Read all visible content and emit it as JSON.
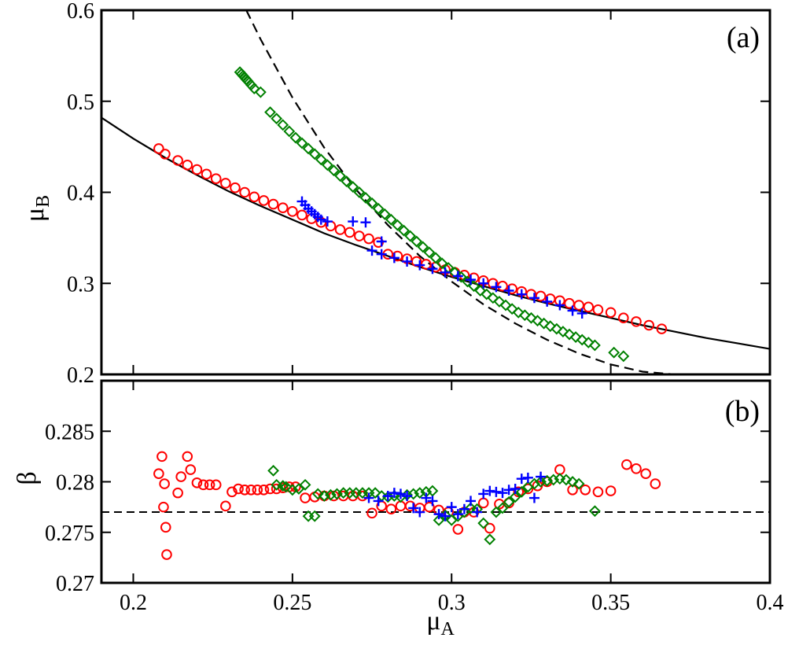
{
  "chart_data": [
    {
      "type": "scatter",
      "panel_label": "(a)",
      "xlabel": "μ",
      "xlabel_sub": "A",
      "ylabel": "μ",
      "ylabel_sub": "B",
      "xlim": [
        0.19,
        0.4
      ],
      "ylim": [
        0.2,
        0.6
      ],
      "x_ticks": [
        0.2,
        0.25,
        0.3,
        0.35,
        0.4
      ],
      "x_tick_labels": [
        "0.2",
        "0.25",
        "0.3",
        "0.35",
        "0.4"
      ],
      "y_ticks": [
        0.2,
        0.3,
        0.4,
        0.5,
        0.6
      ],
      "y_tick_labels": [
        "0.2",
        "0.3",
        "0.4",
        "0.5",
        "0.6"
      ],
      "lines": [
        {
          "name": "solid fit",
          "style": "solid",
          "color": "#000000",
          "x": [
            0.19,
            0.2,
            0.21,
            0.22,
            0.23,
            0.24,
            0.25,
            0.26,
            0.27,
            0.28,
            0.29,
            0.3,
            0.31,
            0.32,
            0.33,
            0.34,
            0.35,
            0.36,
            0.37,
            0.38,
            0.39,
            0.4
          ],
          "y": [
            0.482,
            0.459,
            0.438,
            0.419,
            0.401,
            0.385,
            0.37,
            0.355,
            0.342,
            0.33,
            0.318,
            0.307,
            0.297,
            0.287,
            0.278,
            0.27,
            0.262,
            0.254,
            0.247,
            0.24,
            0.234,
            0.228
          ]
        },
        {
          "name": "dashed fit",
          "style": "dashed",
          "color": "#000000",
          "x": [
            0.2355,
            0.24,
            0.25,
            0.26,
            0.27,
            0.28,
            0.29,
            0.3,
            0.31,
            0.32,
            0.33,
            0.34,
            0.35,
            0.36,
            0.37,
            0.3738
          ],
          "y": [
            0.6,
            0.568,
            0.504,
            0.449,
            0.403,
            0.364,
            0.33,
            0.302,
            0.277,
            0.256,
            0.238,
            0.223,
            0.211,
            0.203,
            0.2,
            0.2
          ]
        }
      ],
      "series": [
        {
          "name": "circles",
          "marker": "circle",
          "color": "#ff0000",
          "x": [
            0.208,
            0.21,
            0.214,
            0.217,
            0.22,
            0.223,
            0.226,
            0.229,
            0.232,
            0.235,
            0.238,
            0.241,
            0.244,
            0.247,
            0.25,
            0.253,
            0.256,
            0.259,
            0.262,
            0.265,
            0.268,
            0.271,
            0.274,
            0.277,
            0.28,
            0.283,
            0.286,
            0.289,
            0.292,
            0.295,
            0.298,
            0.301,
            0.304,
            0.307,
            0.31,
            0.313,
            0.316,
            0.319,
            0.322,
            0.325,
            0.328,
            0.331,
            0.334,
            0.337,
            0.34,
            0.343,
            0.346,
            0.35,
            0.354,
            0.358,
            0.362,
            0.366
          ],
          "y": [
            0.448,
            0.442,
            0.435,
            0.43,
            0.425,
            0.42,
            0.415,
            0.41,
            0.405,
            0.4,
            0.395,
            0.391,
            0.387,
            0.383,
            0.379,
            0.375,
            0.371,
            0.367,
            0.363,
            0.359,
            0.356,
            0.352,
            0.349,
            0.345,
            0.332,
            0.33,
            0.327,
            0.324,
            0.321,
            0.318,
            0.315,
            0.312,
            0.309,
            0.306,
            0.303,
            0.3,
            0.297,
            0.294,
            0.291,
            0.288,
            0.286,
            0.283,
            0.281,
            0.278,
            0.276,
            0.274,
            0.271,
            0.268,
            0.262,
            0.258,
            0.254,
            0.25
          ]
        },
        {
          "name": "diamonds",
          "marker": "diamond",
          "color": "#008000",
          "x": [
            0.2335,
            0.234,
            0.2345,
            0.235,
            0.2355,
            0.236,
            0.237,
            0.238,
            0.24,
            0.243,
            0.245,
            0.247,
            0.249,
            0.251,
            0.253,
            0.255,
            0.257,
            0.259,
            0.261,
            0.263,
            0.265,
            0.267,
            0.269,
            0.271,
            0.273,
            0.275,
            0.277,
            0.279,
            0.281,
            0.283,
            0.285,
            0.287,
            0.289,
            0.291,
            0.293,
            0.295,
            0.297,
            0.299,
            0.301,
            0.303,
            0.305,
            0.307,
            0.309,
            0.311,
            0.313,
            0.315,
            0.317,
            0.319,
            0.321,
            0.323,
            0.325,
            0.327,
            0.329,
            0.331,
            0.333,
            0.335,
            0.337,
            0.339,
            0.341,
            0.343,
            0.345,
            0.351,
            0.354
          ],
          "y": [
            0.532,
            0.53,
            0.528,
            0.526,
            0.524,
            0.522,
            0.518,
            0.514,
            0.51,
            0.488,
            0.481,
            0.474,
            0.467,
            0.46,
            0.454,
            0.448,
            0.442,
            0.436,
            0.43,
            0.424,
            0.418,
            0.412,
            0.406,
            0.4,
            0.394,
            0.388,
            0.382,
            0.376,
            0.37,
            0.364,
            0.358,
            0.352,
            0.346,
            0.34,
            0.334,
            0.328,
            0.322,
            0.317,
            0.312,
            0.307,
            0.302,
            0.297,
            0.292,
            0.288,
            0.284,
            0.28,
            0.276,
            0.272,
            0.268,
            0.265,
            0.262,
            0.259,
            0.256,
            0.253,
            0.25,
            0.247,
            0.244,
            0.241,
            0.238,
            0.235,
            0.232,
            0.224,
            0.22
          ]
        },
        {
          "name": "crosses",
          "marker": "plus",
          "color": "#0000ff",
          "x": [
            0.253,
            0.254,
            0.255,
            0.256,
            0.257,
            0.258,
            0.259,
            0.261,
            0.269,
            0.273,
            0.278,
            0.275,
            0.278,
            0.282,
            0.286,
            0.29,
            0.294,
            0.298,
            0.302,
            0.306,
            0.31,
            0.314,
            0.318,
            0.322,
            0.326,
            0.33,
            0.334,
            0.338,
            0.341
          ],
          "y": [
            0.39,
            0.386,
            0.382,
            0.379,
            0.376,
            0.373,
            0.37,
            0.368,
            0.368,
            0.367,
            0.346,
            0.336,
            0.332,
            0.328,
            0.324,
            0.32,
            0.316,
            0.312,
            0.308,
            0.304,
            0.3,
            0.296,
            0.292,
            0.288,
            0.284,
            0.28,
            0.276,
            0.27,
            0.267
          ]
        }
      ]
    },
    {
      "type": "scatter",
      "panel_label": "(b)",
      "xlabel": "μ",
      "xlabel_sub": "A",
      "ylabel": "β",
      "xlim": [
        0.19,
        0.4
      ],
      "ylim": [
        0.27,
        0.29
      ],
      "x_ticks": [
        0.2,
        0.25,
        0.3,
        0.35,
        0.4
      ],
      "x_tick_labels": [
        "0.2",
        "0.25",
        "0.3",
        "0.35",
        "0.4"
      ],
      "y_ticks": [
        0.27,
        0.275,
        0.28,
        0.285
      ],
      "y_tick_labels": [
        "0.27",
        "0.275",
        "0.28",
        "0.285"
      ],
      "reference_line": {
        "y": 0.277,
        "style": "dashed",
        "color": "#000000"
      },
      "series": [
        {
          "name": "circles",
          "marker": "circle",
          "color": "#ff0000",
          "x": [
            0.208,
            0.209,
            0.2095,
            0.2098,
            0.2102,
            0.2105,
            0.214,
            0.215,
            0.217,
            0.218,
            0.22,
            0.222,
            0.224,
            0.226,
            0.229,
            0.231,
            0.233,
            0.235,
            0.237,
            0.239,
            0.241,
            0.243,
            0.245,
            0.247,
            0.249,
            0.251,
            0.254,
            0.257,
            0.26,
            0.263,
            0.266,
            0.269,
            0.272,
            0.275,
            0.278,
            0.281,
            0.284,
            0.287,
            0.29,
            0.293,
            0.296,
            0.299,
            0.302,
            0.304,
            0.307,
            0.31,
            0.312,
            0.315,
            0.318,
            0.321,
            0.324,
            0.327,
            0.33,
            0.334,
            0.338,
            0.342,
            0.346,
            0.35,
            0.355,
            0.358,
            0.361,
            0.364
          ],
          "y": [
            0.2808,
            0.2825,
            0.2775,
            0.2798,
            0.2755,
            0.2728,
            0.2789,
            0.2805,
            0.2825,
            0.2812,
            0.2799,
            0.2797,
            0.2797,
            0.2797,
            0.2776,
            0.279,
            0.2793,
            0.2792,
            0.2792,
            0.2792,
            0.2792,
            0.2793,
            0.2793,
            0.2794,
            0.2795,
            0.2795,
            0.2784,
            0.2785,
            0.2786,
            0.2786,
            0.2786,
            0.2786,
            0.2786,
            0.2769,
            0.2776,
            0.2773,
            0.2776,
            0.2776,
            0.2774,
            0.2775,
            0.2772,
            0.277,
            0.2753,
            0.277,
            0.277,
            0.2779,
            0.2754,
            0.2778,
            0.2779,
            0.279,
            0.2793,
            0.2796,
            0.28,
            0.2812,
            0.2792,
            0.2792,
            0.279,
            0.2791,
            0.2817,
            0.2813,
            0.2808,
            0.2798
          ]
        },
        {
          "name": "diamonds",
          "marker": "diamond",
          "color": "#008000",
          "x": [
            0.244,
            0.245,
            0.247,
            0.248,
            0.25,
            0.252,
            0.254,
            0.255,
            0.257,
            0.258,
            0.26,
            0.262,
            0.264,
            0.266,
            0.268,
            0.27,
            0.272,
            0.274,
            0.276,
            0.278,
            0.28,
            0.282,
            0.284,
            0.286,
            0.288,
            0.29,
            0.292,
            0.294,
            0.296,
            0.298,
            0.3,
            0.302,
            0.304,
            0.306,
            0.308,
            0.31,
            0.312,
            0.314,
            0.316,
            0.318,
            0.32,
            0.322,
            0.324,
            0.326,
            0.328,
            0.33,
            0.332,
            0.334,
            0.336,
            0.338,
            0.34,
            0.345
          ],
          "y": [
            0.2811,
            0.2797,
            0.2796,
            0.2795,
            0.2792,
            0.2793,
            0.2797,
            0.2766,
            0.2766,
            0.2788,
            0.2786,
            0.2787,
            0.2788,
            0.2789,
            0.2789,
            0.2789,
            0.2789,
            0.2789,
            0.2789,
            0.2786,
            0.2785,
            0.2786,
            0.2785,
            0.2787,
            0.2788,
            0.2789,
            0.279,
            0.2791,
            0.2762,
            0.2767,
            0.2762,
            0.2766,
            0.277,
            0.2774,
            0.2773,
            0.2759,
            0.2743,
            0.277,
            0.2774,
            0.278,
            0.2785,
            0.279,
            0.2795,
            0.2798,
            0.28,
            0.2801,
            0.2802,
            0.2803,
            0.2802,
            0.28,
            0.2798,
            0.2771
          ]
        },
        {
          "name": "crosses",
          "marker": "plus",
          "color": "#0000ff",
          "x": [
            0.274,
            0.277,
            0.28,
            0.282,
            0.284,
            0.286,
            0.288,
            0.29,
            0.292,
            0.294,
            0.296,
            0.298,
            0.3,
            0.302,
            0.304,
            0.306,
            0.308,
            0.31,
            0.312,
            0.314,
            0.316,
            0.318,
            0.32,
            0.322,
            0.324,
            0.326,
            0.328
          ],
          "y": [
            0.2784,
            0.2781,
            0.2786,
            0.2789,
            0.2788,
            0.2786,
            0.2774,
            0.277,
            0.2784,
            0.2781,
            0.2768,
            0.2766,
            0.2775,
            0.2768,
            0.2773,
            0.2781,
            0.277,
            0.2788,
            0.2791,
            0.279,
            0.2789,
            0.2792,
            0.2793,
            0.2803,
            0.2804,
            0.2784,
            0.2805
          ]
        }
      ]
    }
  ]
}
